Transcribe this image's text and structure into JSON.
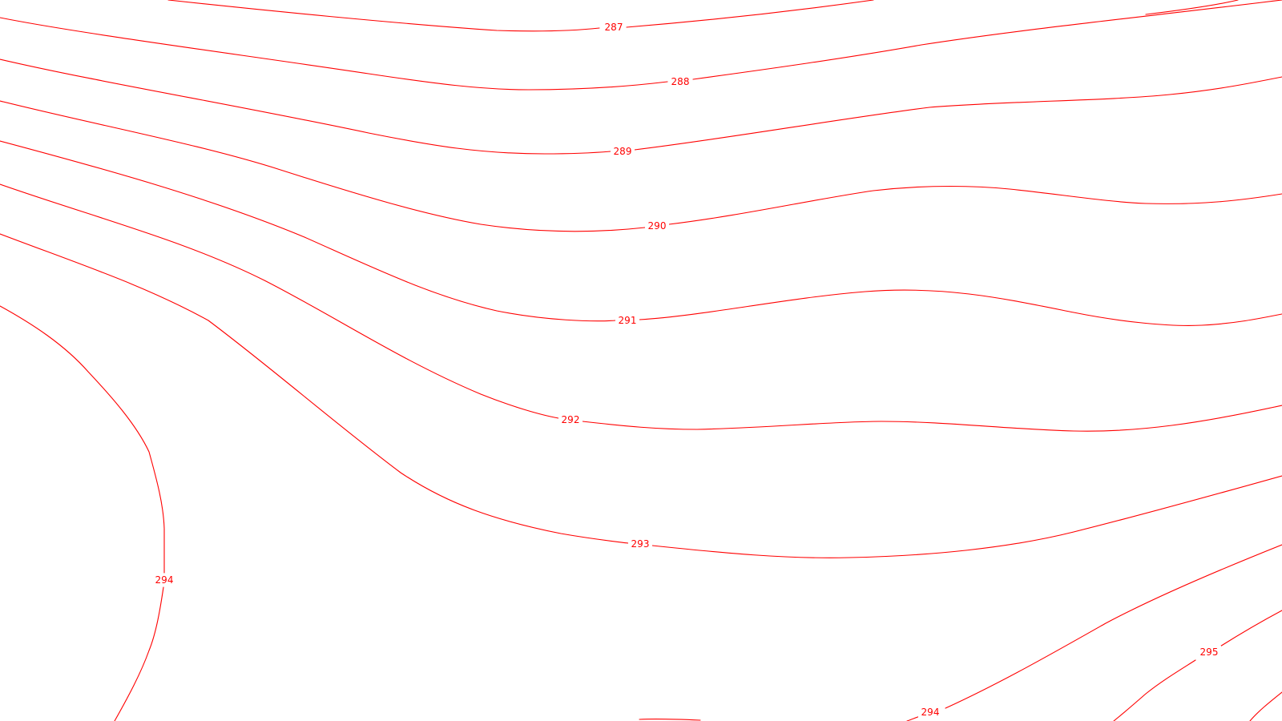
{
  "map": {
    "line_color": "#ff0000",
    "background_color": "#ffffff",
    "contours": [
      {
        "value": "287",
        "label": "287"
      },
      {
        "value": "288",
        "label": "288"
      },
      {
        "value": "289",
        "label": "289"
      },
      {
        "value": "290",
        "label": "290"
      },
      {
        "value": "291",
        "label": "291"
      },
      {
        "value": "292",
        "label": "292"
      },
      {
        "value": "293",
        "label": "293"
      },
      {
        "value": "294",
        "label": "294"
      },
      {
        "value": "294",
        "label": "294"
      },
      {
        "value": "295",
        "label": "295"
      }
    ]
  }
}
